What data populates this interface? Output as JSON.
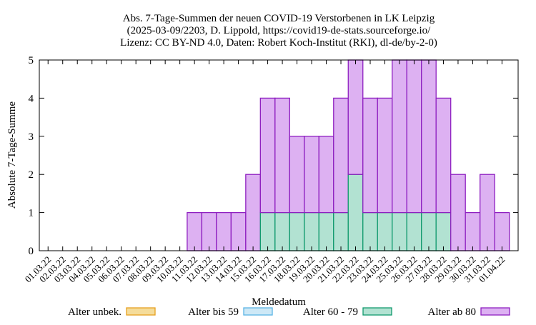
{
  "chart_data": {
    "type": "bar",
    "stacked": true,
    "title_lines": [
      "Abs. 7-Tage-Summen der neuen COVID-19 Verstorbenen in LK Leipzig",
      "(2025-03-09/2203, D. Lippold, https://covid19-de-stats.sourceforge.io/",
      "Lizenz: CC BY-ND 4.0, Daten: Robert Koch-Institut (RKI), dl-de/by-2-0)"
    ],
    "xlabel": "Meldedatum",
    "ylabel": "Absolute 7-Tage-Summe",
    "ylim": [
      0,
      5
    ],
    "yticks": [
      0,
      1,
      2,
      3,
      4,
      5
    ],
    "grid": false,
    "legend_position": "bottom",
    "categories": [
      "01.03.22",
      "02.03.22",
      "03.03.22",
      "04.03.22",
      "05.03.22",
      "06.03.22",
      "07.03.22",
      "08.03.22",
      "09.03.22",
      "10.03.22",
      "11.03.22",
      "12.03.22",
      "13.03.22",
      "14.03.22",
      "15.03.22",
      "16.03.22",
      "17.03.22",
      "18.03.22",
      "19.03.22",
      "20.03.22",
      "21.03.22",
      "22.03.22",
      "23.03.22",
      "24.03.22",
      "25.03.22",
      "26.03.22",
      "27.03.22",
      "28.03.22",
      "29.03.22",
      "30.03.22",
      "31.03.22",
      "01.04.22"
    ],
    "series": [
      {
        "name": "Alter unbek.",
        "color": "#f5dc9a",
        "stroke": "#e6a020",
        "values": [
          0,
          0,
          0,
          0,
          0,
          0,
          0,
          0,
          0,
          0,
          0,
          0,
          0,
          0,
          0,
          0,
          0,
          0,
          0,
          0,
          0,
          0,
          0,
          0,
          0,
          0,
          0,
          0,
          0,
          0,
          0,
          0
        ]
      },
      {
        "name": "Alter bis 59",
        "color": "#cde8f6",
        "stroke": "#5ab4e5",
        "values": [
          0,
          0,
          0,
          0,
          0,
          0,
          0,
          0,
          0,
          0,
          0,
          0,
          0,
          0,
          0,
          0,
          0,
          0,
          0,
          0,
          0,
          0,
          0,
          0,
          0,
          0,
          0,
          0,
          0,
          0,
          0,
          0
        ]
      },
      {
        "name": "Alter 60 - 79",
        "color": "#b2e2d2",
        "stroke": "#119a6e",
        "values": [
          0,
          0,
          0,
          0,
          0,
          0,
          0,
          0,
          0,
          0,
          0,
          0,
          0,
          0,
          0,
          1,
          1,
          1,
          1,
          1,
          1,
          2,
          1,
          1,
          1,
          1,
          1,
          1,
          0,
          0,
          0,
          0
        ]
      },
      {
        "name": "Alter ab 80",
        "color": "#ddb1f2",
        "stroke": "#8e1fc0",
        "values": [
          0,
          0,
          0,
          0,
          0,
          0,
          0,
          0,
          0,
          0,
          1,
          1,
          1,
          1,
          2,
          3,
          3,
          2,
          2,
          2,
          3,
          3,
          3,
          3,
          4,
          4,
          4,
          3,
          2,
          1,
          2,
          1
        ]
      }
    ]
  }
}
